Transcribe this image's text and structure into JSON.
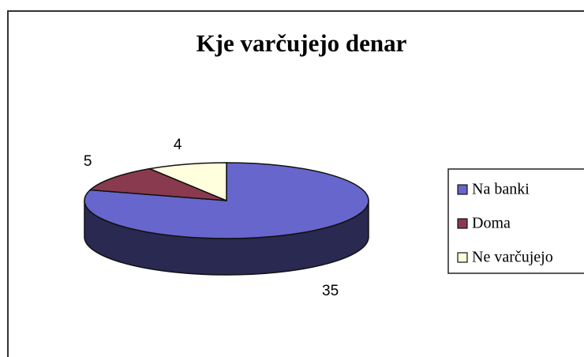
{
  "chart_data": {
    "type": "pie",
    "title": "Kje varčujejo denar",
    "categories": [
      "Na banki",
      "Doma",
      "Ne varčujejo"
    ],
    "values": [
      35,
      5,
      4
    ],
    "colors": [
      "#6666cc",
      "#8a3a4e",
      "#ffffdd"
    ],
    "legend": "right"
  }
}
